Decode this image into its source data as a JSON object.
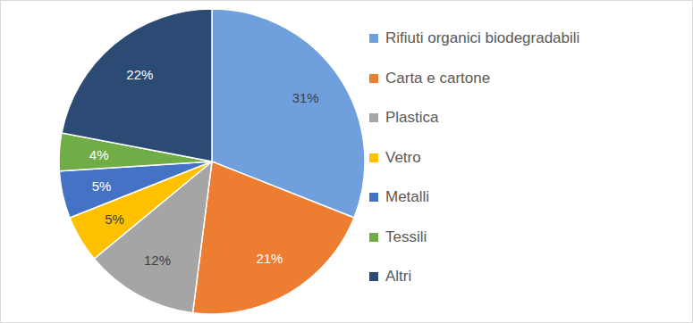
{
  "chart_data": {
    "type": "pie",
    "categories": [
      "Rifiuti organici biodegradabili",
      "Carta e cartone",
      "Plastica",
      "Vetro",
      "Metalli",
      "Tessili",
      "Altri"
    ],
    "values": [
      31,
      21,
      12,
      5,
      5,
      4,
      22
    ],
    "value_labels": [
      "31%",
      "21%",
      "12%",
      "5%",
      "5%",
      "4%",
      "22%"
    ],
    "colors": [
      "#6f9fdc",
      "#ed7d31",
      "#a5a5a5",
      "#ffc000",
      "#4472c4",
      "#70ad47",
      "#2b4a74"
    ],
    "data_labels": true,
    "legend": "right"
  }
}
